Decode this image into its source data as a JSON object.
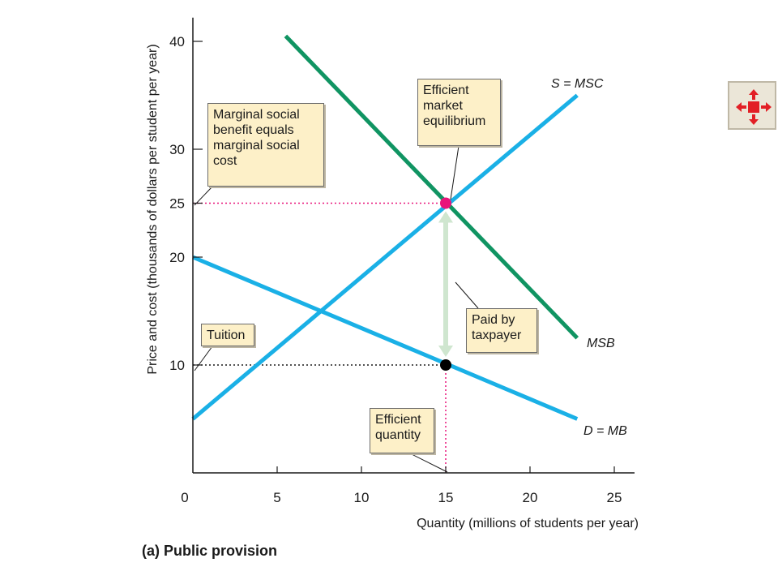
{
  "chart_data": {
    "type": "line",
    "title": "(a) Public provision",
    "xlabel": "Quantity (millions of students per year)",
    "ylabel": "Price and cost (thousands of dollars per student per year)",
    "xlim": [
      0,
      26
    ],
    "ylim": [
      0,
      42
    ],
    "x_ticks": [
      0,
      5,
      10,
      15,
      20,
      25
    ],
    "y_ticks": [
      10,
      20,
      25,
      30,
      40
    ],
    "highlighted_ticks": {
      "x": [
        15
      ],
      "y": [
        25
      ]
    },
    "series": [
      {
        "name": "S = MSC",
        "color": "#1ab0e6",
        "x": [
          0,
          22.8
        ],
        "y": [
          5,
          35
        ]
      },
      {
        "name": "MSB",
        "color": "#109462",
        "x": [
          5.5,
          22.8
        ],
        "y": [
          40.5,
          12.5
        ]
      },
      {
        "name": "D = MB",
        "color": "#1ab0e6",
        "x": [
          0,
          22.8
        ],
        "y": [
          20,
          5
        ]
      }
    ],
    "points": [
      {
        "x": 15,
        "y": 25,
        "color": "#e8147a"
      },
      {
        "x": 15,
        "y": 10,
        "color": "#000000"
      }
    ],
    "annotations": [
      {
        "id": "msb_eq_msc",
        "text": "Marginal social\nbenefit equals\nmarginal social\ncost"
      },
      {
        "id": "efficient_equilibrium",
        "text": "Efficient\nmarket\nequilibrium"
      },
      {
        "id": "tuition",
        "text": "Tuition"
      },
      {
        "id": "paid_by_taxpayer",
        "text": "Paid by\ntaxpayer"
      },
      {
        "id": "efficient_quantity",
        "text": "Efficient\nquantity"
      }
    ],
    "grid": false,
    "legend": "none"
  },
  "colors": {
    "supply": "#1ab0e6",
    "msb": "#109462",
    "demand": "#1ab0e6",
    "highlight": "#e8147a",
    "callout_bg": "#fdf0c8",
    "arrow": "#cfe6cf"
  },
  "nav": {
    "icon": "expand-arrows-icon"
  }
}
